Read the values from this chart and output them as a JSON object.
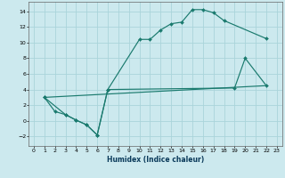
{
  "xlabel": "Humidex (Indice chaleur)",
  "bg_color": "#cce9ee",
  "grid_color": "#aad4da",
  "line_color": "#1a7a6e",
  "xlim": [
    -0.5,
    23.5
  ],
  "ylim": [
    -3.2,
    15.2
  ],
  "xticks": [
    0,
    1,
    2,
    3,
    4,
    5,
    6,
    7,
    8,
    9,
    10,
    11,
    12,
    13,
    14,
    15,
    16,
    17,
    18,
    19,
    20,
    21,
    22,
    23
  ],
  "yticks": [
    -2,
    0,
    2,
    4,
    6,
    8,
    10,
    12,
    14
  ],
  "line1_x": [
    1,
    2,
    3,
    4,
    5,
    6,
    7,
    10,
    11,
    12,
    13,
    14,
    15,
    16,
    17,
    18,
    22
  ],
  "line1_y": [
    3.0,
    1.2,
    0.8,
    0.1,
    -0.5,
    -1.8,
    4.0,
    10.4,
    10.4,
    11.6,
    12.4,
    12.6,
    14.2,
    14.2,
    13.8,
    12.8,
    10.5
  ],
  "line2_x": [
    1,
    3,
    4,
    5,
    6,
    7,
    19,
    20,
    22
  ],
  "line2_y": [
    3.0,
    0.8,
    0.1,
    -0.5,
    -1.8,
    4.0,
    4.2,
    8.0,
    4.5
  ],
  "line3_x": [
    1,
    22
  ],
  "line3_y": [
    3.0,
    4.5
  ]
}
